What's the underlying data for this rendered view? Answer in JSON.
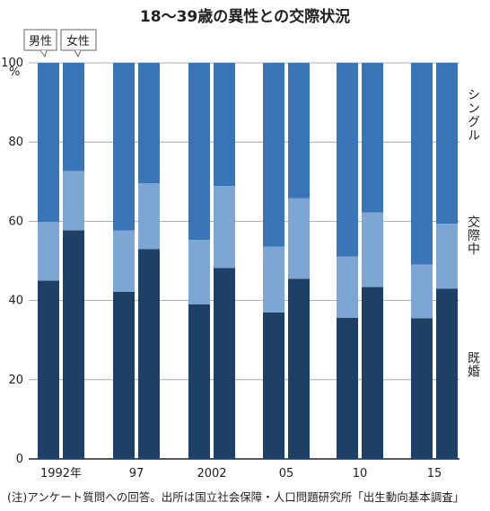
{
  "chart_data": {
    "type": "bar",
    "stacked": true,
    "title": "18〜39歳の異性との交際状況",
    "y_unit": "%",
    "ylim": [
      0,
      100
    ],
    "yticks": [
      0,
      20,
      40,
      60,
      80,
      100
    ],
    "categories": [
      "1992年",
      "97",
      "2002",
      "05",
      "10",
      "15"
    ],
    "groups": [
      "男性",
      "女性"
    ],
    "series": [
      {
        "name": "既婚",
        "color": "#1e3f66",
        "values": {
          "男性": [
            45.0,
            42.2,
            39.0,
            37.0,
            35.6,
            35.5
          ],
          "女性": [
            57.7,
            53.0,
            48.2,
            45.5,
            43.4,
            43.0
          ]
        }
      },
      {
        "name": "交際中",
        "color": "#7da6d2",
        "values": {
          "男性": [
            14.8,
            15.5,
            16.3,
            16.6,
            15.5,
            13.6
          ],
          "女性": [
            15.0,
            16.6,
            20.7,
            20.3,
            18.8,
            16.4
          ]
        }
      },
      {
        "name": "シングル",
        "color": "#3a75b8",
        "values": {
          "男性": [
            40.2,
            42.3,
            44.7,
            46.4,
            48.9,
            50.9
          ],
          "女性": [
            27.3,
            30.4,
            31.1,
            34.2,
            37.8,
            40.6
          ]
        }
      }
    ],
    "vertical_labels": [
      "シングル",
      "交際中",
      "既婚"
    ],
    "note": "(注)アンケート質問への回答。出所は国立社会保障・人口問題研究所「出生動向基本調査」"
  }
}
